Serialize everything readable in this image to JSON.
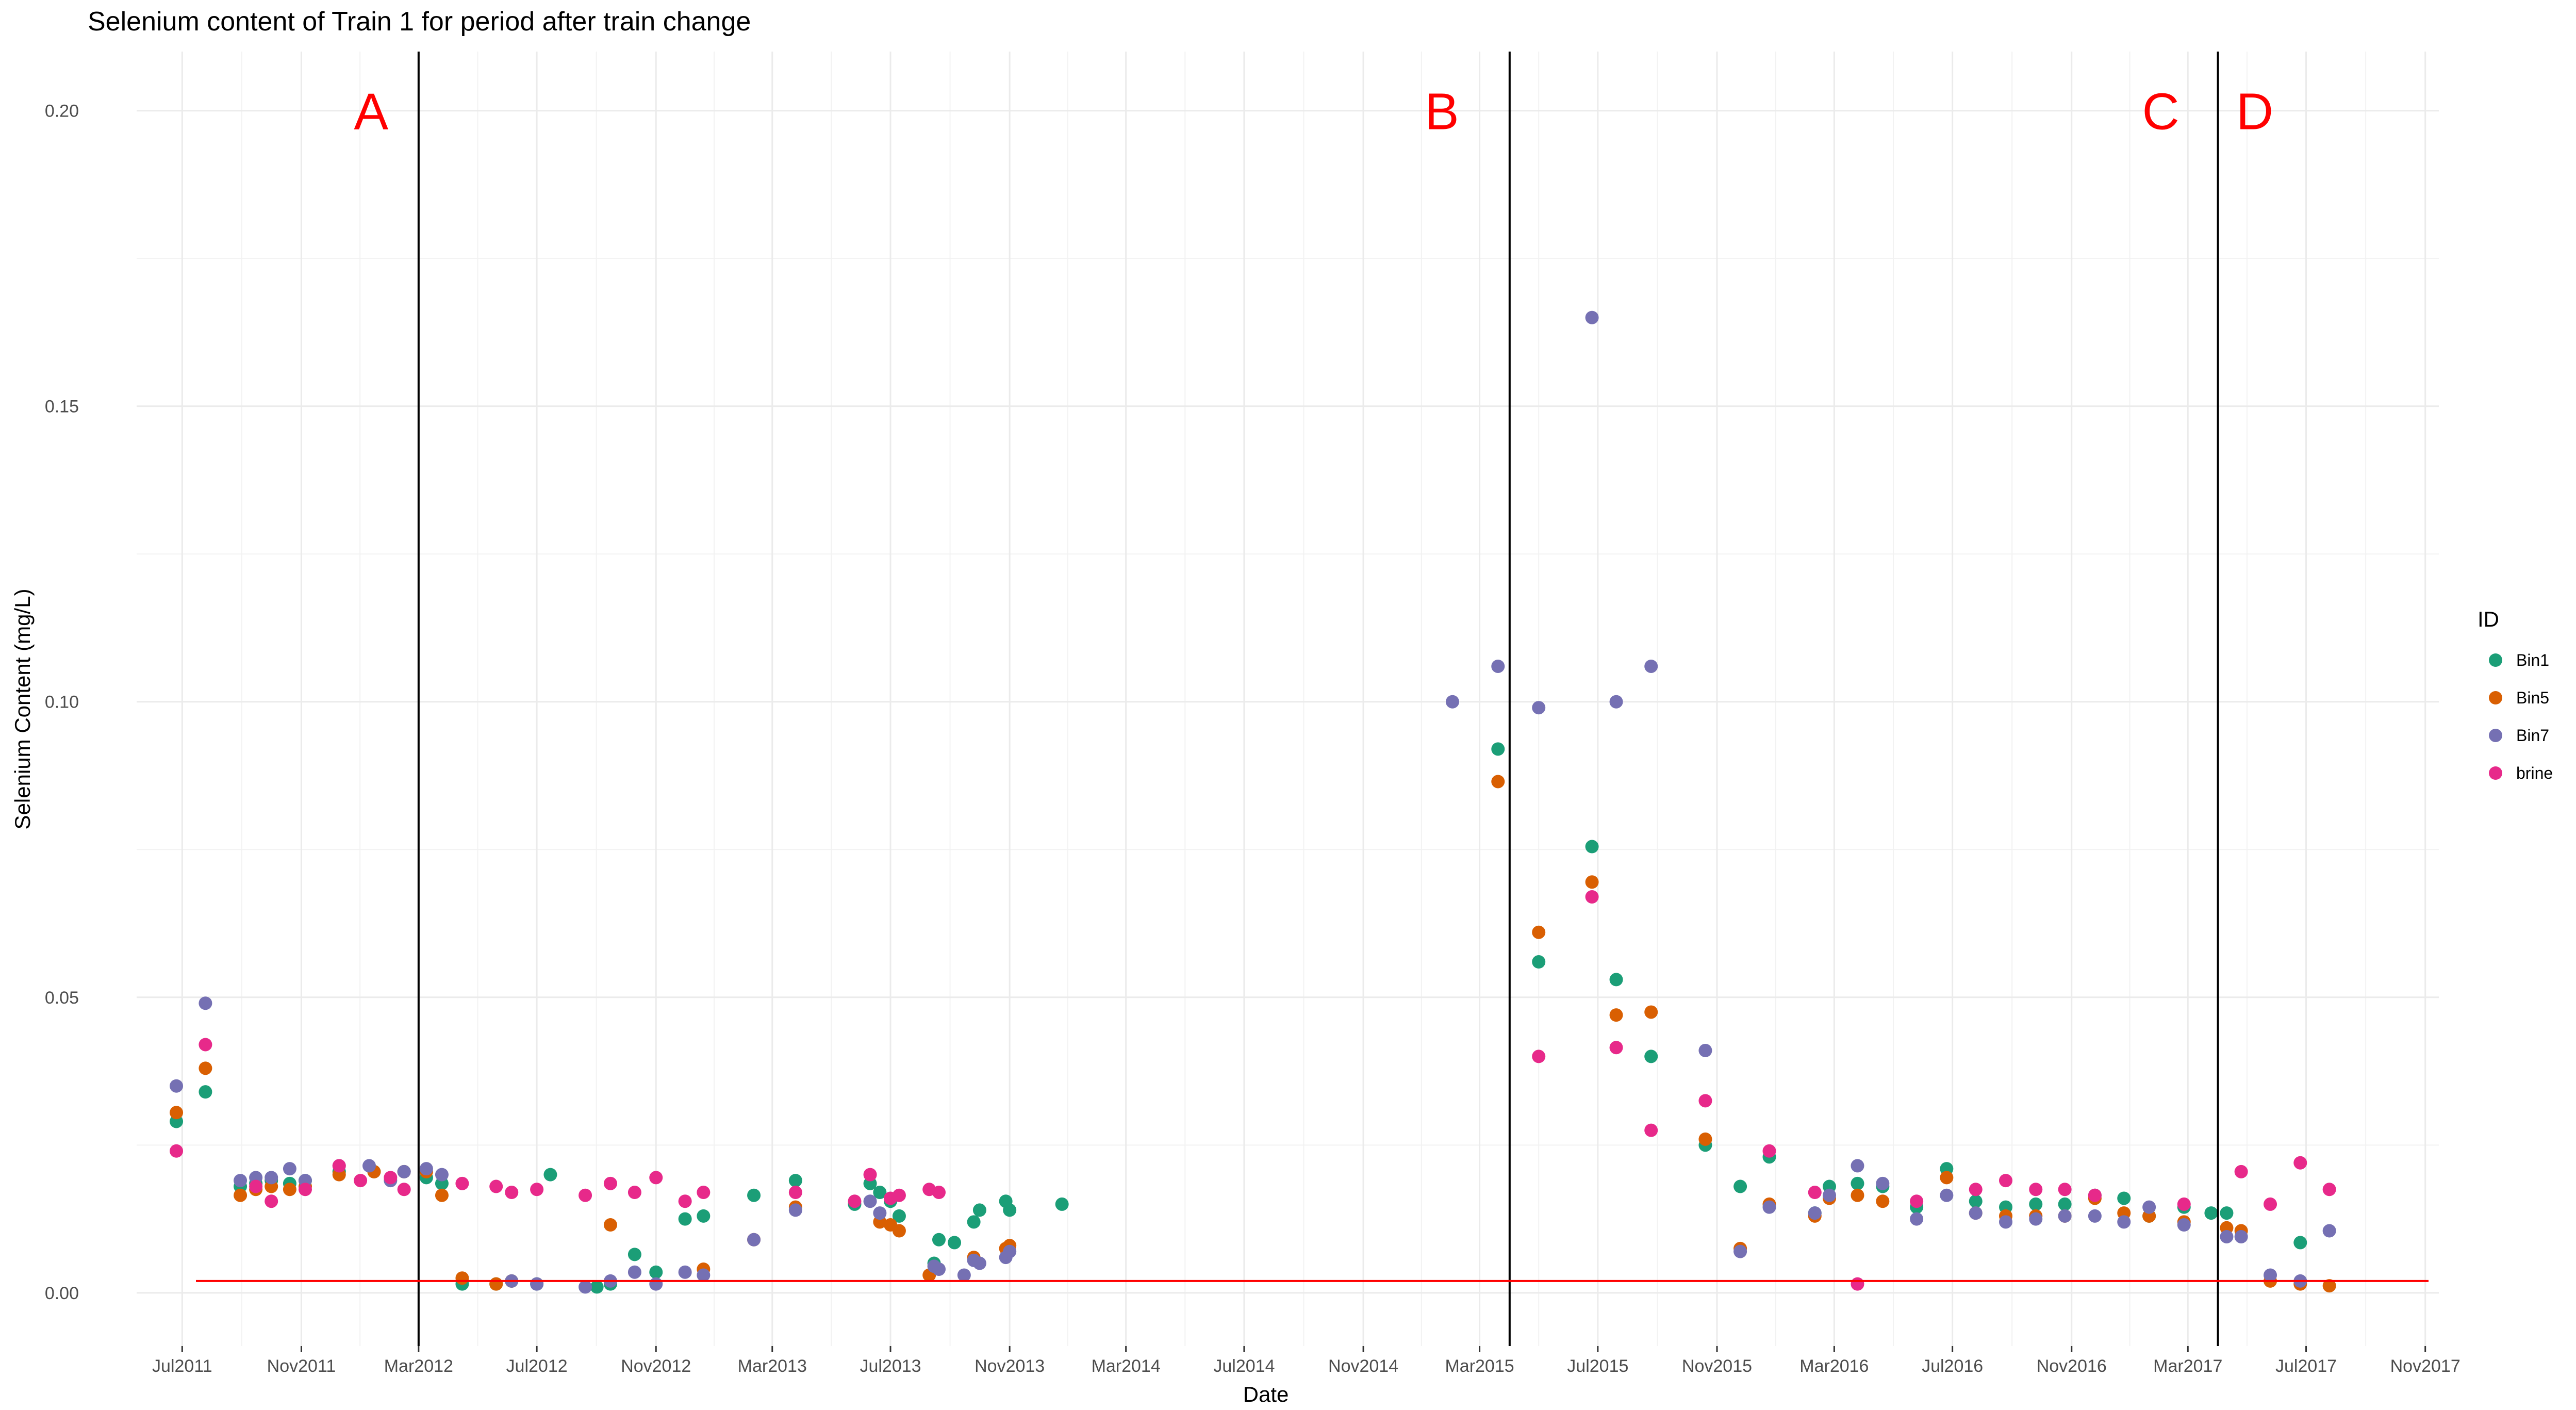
{
  "chart_data": {
    "type": "scatter",
    "title": "Selenium content of Train 1 for period after train change",
    "xlabel": "Date",
    "ylabel": "Selenium Content (mg/L)",
    "xlim": [
      "2011-05-15",
      "2017-11-15"
    ],
    "ylim": [
      -0.009,
      0.21
    ],
    "x_ticks": [
      {
        "date": "2011-07-01",
        "label": "Jul2011"
      },
      {
        "date": "2011-11-01",
        "label": "Nov2011"
      },
      {
        "date": "2012-03-01",
        "label": "Mar2012"
      },
      {
        "date": "2012-07-01",
        "label": "Jul2012"
      },
      {
        "date": "2012-11-01",
        "label": "Nov2012"
      },
      {
        "date": "2013-03-01",
        "label": "Mar2013"
      },
      {
        "date": "2013-07-01",
        "label": "Jul2013"
      },
      {
        "date": "2013-11-01",
        "label": "Nov2013"
      },
      {
        "date": "2014-03-01",
        "label": "Mar2014"
      },
      {
        "date": "2014-07-01",
        "label": "Jul2014"
      },
      {
        "date": "2014-11-01",
        "label": "Nov2014"
      },
      {
        "date": "2015-03-01",
        "label": "Mar2015"
      },
      {
        "date": "2015-07-01",
        "label": "Jul2015"
      },
      {
        "date": "2015-11-01",
        "label": "Nov2015"
      },
      {
        "date": "2016-03-01",
        "label": "Mar2016"
      },
      {
        "date": "2016-07-01",
        "label": "Jul2016"
      },
      {
        "date": "2016-11-01",
        "label": "Nov2016"
      },
      {
        "date": "2017-03-01",
        "label": "Mar2017"
      },
      {
        "date": "2017-07-01",
        "label": "Jul2017"
      },
      {
        "date": "2017-11-01",
        "label": "Nov2017"
      }
    ],
    "y_ticks": [
      {
        "value": 0.0,
        "label": "0.00"
      },
      {
        "value": 0.05,
        "label": "0.05"
      },
      {
        "value": 0.1,
        "label": "0.10"
      },
      {
        "value": 0.15,
        "label": "0.15"
      },
      {
        "value": 0.2,
        "label": "0.20"
      }
    ],
    "grid": true,
    "legend": {
      "title": "ID",
      "position": "right"
    },
    "vertical_lines": [
      {
        "date": "2012-03-01",
        "color": "#000000"
      },
      {
        "date": "2015-04-01",
        "color": "#000000"
      },
      {
        "date": "2017-04-01",
        "color": "#000000"
      }
    ],
    "hline": {
      "value": 0.002,
      "color": "#ff0000"
    },
    "annotations": [
      {
        "label": "A",
        "date": "2012-01-12",
        "value": 0.2
      },
      {
        "label": "B",
        "date": "2015-01-21",
        "value": 0.2
      },
      {
        "label": "C",
        "date": "2017-02-01",
        "value": 0.2
      },
      {
        "label": "D",
        "date": "2017-05-09",
        "value": 0.2
      }
    ],
    "series": [
      {
        "name": "Bin1",
        "color": "#1b9e77",
        "points": [
          [
            "2011-06-25",
            0.029
          ],
          [
            "2011-07-25",
            0.034
          ],
          [
            "2011-08-30",
            0.018
          ],
          [
            "2011-09-15",
            0.0185
          ],
          [
            "2011-10-01",
            0.019
          ],
          [
            "2011-10-20",
            0.0185
          ],
          [
            "2011-11-05",
            0.019
          ],
          [
            "2011-12-10",
            0.0205
          ],
          [
            "2012-01-15",
            0.0205
          ],
          [
            "2012-02-15",
            0.0205
          ],
          [
            "2012-03-09",
            0.0195
          ],
          [
            "2012-03-25",
            0.0185
          ],
          [
            "2012-04-15",
            0.0015
          ],
          [
            "2012-05-20",
            0.0015
          ],
          [
            "2012-06-05",
            0.002
          ],
          [
            "2012-07-01",
            0.0015
          ],
          [
            "2012-07-15",
            0.02
          ],
          [
            "2012-09-01",
            0.001
          ],
          [
            "2012-09-15",
            0.0015
          ],
          [
            "2012-10-10",
            0.0065
          ],
          [
            "2012-11-01",
            0.0035
          ],
          [
            "2012-12-01",
            0.0125
          ],
          [
            "2012-12-20",
            0.013
          ],
          [
            "2013-02-10",
            0.0165
          ],
          [
            "2013-03-25",
            0.019
          ],
          [
            "2013-05-25",
            0.015
          ],
          [
            "2013-06-10",
            0.0185
          ],
          [
            "2013-06-20",
            0.017
          ],
          [
            "2013-07-01",
            0.0155
          ],
          [
            "2013-07-10",
            0.013
          ],
          [
            "2013-08-15",
            0.005
          ],
          [
            "2013-08-20",
            0.009
          ],
          [
            "2013-09-05",
            0.0085
          ],
          [
            "2013-09-25",
            0.012
          ],
          [
            "2013-10-01",
            0.014
          ],
          [
            "2013-10-28",
            0.0155
          ],
          [
            "2013-11-01",
            0.014
          ],
          [
            "2013-12-25",
            0.015
          ],
          [
            "2015-03-20",
            0.092
          ],
          [
            "2015-05-01",
            0.056
          ],
          [
            "2015-06-25",
            0.0755
          ],
          [
            "2015-07-20",
            0.053
          ],
          [
            "2015-08-25",
            0.04
          ],
          [
            "2015-10-20",
            0.025
          ],
          [
            "2015-11-25",
            0.018
          ],
          [
            "2015-12-25",
            0.023
          ],
          [
            "2016-02-10",
            0.0135
          ],
          [
            "2016-02-25",
            0.018
          ],
          [
            "2016-03-25",
            0.0185
          ],
          [
            "2016-04-20",
            0.018
          ],
          [
            "2016-05-25",
            0.0145
          ],
          [
            "2016-06-25",
            0.021
          ],
          [
            "2016-07-25",
            0.0155
          ],
          [
            "2016-08-25",
            0.0145
          ],
          [
            "2016-09-25",
            0.015
          ],
          [
            "2016-10-25",
            0.015
          ],
          [
            "2016-11-25",
            0.0165
          ],
          [
            "2016-12-25",
            0.016
          ],
          [
            "2017-01-20",
            0.013
          ],
          [
            "2017-02-25",
            0.0145
          ],
          [
            "2017-03-25",
            0.0135
          ],
          [
            "2017-04-10",
            0.0135
          ],
          [
            "2017-06-25",
            0.0085
          ]
        ]
      },
      {
        "name": "Bin5",
        "color": "#d95f02",
        "points": [
          [
            "2011-06-25",
            0.0305
          ],
          [
            "2011-07-25",
            0.038
          ],
          [
            "2011-08-30",
            0.0165
          ],
          [
            "2011-09-15",
            0.0175
          ],
          [
            "2011-10-01",
            0.018
          ],
          [
            "2011-10-20",
            0.0175
          ],
          [
            "2011-11-05",
            0.018
          ],
          [
            "2011-12-10",
            0.02
          ],
          [
            "2012-01-15",
            0.0205
          ],
          [
            "2012-02-15",
            0.0205
          ],
          [
            "2012-03-09",
            0.0205
          ],
          [
            "2012-03-25",
            0.0165
          ],
          [
            "2012-04-15",
            0.0025
          ],
          [
            "2012-05-20",
            0.0015
          ],
          [
            "2012-06-05",
            0.002
          ],
          [
            "2012-09-15",
            0.0115
          ],
          [
            "2012-12-20",
            0.004
          ],
          [
            "2013-02-10",
            0.009
          ],
          [
            "2013-03-25",
            0.0145
          ],
          [
            "2013-06-20",
            0.012
          ],
          [
            "2013-07-01",
            0.0115
          ],
          [
            "2013-07-10",
            0.0105
          ],
          [
            "2013-08-10",
            0.003
          ],
          [
            "2013-09-25",
            0.006
          ],
          [
            "2013-10-28",
            0.0075
          ],
          [
            "2013-11-01",
            0.008
          ],
          [
            "2015-03-20",
            0.0865
          ],
          [
            "2015-05-01",
            0.061
          ],
          [
            "2015-06-25",
            0.0695
          ],
          [
            "2015-07-20",
            0.047
          ],
          [
            "2015-08-25",
            0.0475
          ],
          [
            "2015-10-20",
            0.026
          ],
          [
            "2015-11-25",
            0.0075
          ],
          [
            "2015-12-25",
            0.015
          ],
          [
            "2016-02-10",
            0.013
          ],
          [
            "2016-02-25",
            0.016
          ],
          [
            "2016-03-25",
            0.0165
          ],
          [
            "2016-04-20",
            0.0155
          ],
          [
            "2016-06-25",
            0.0195
          ],
          [
            "2016-07-25",
            0.0135
          ],
          [
            "2016-08-25",
            0.013
          ],
          [
            "2016-09-25",
            0.013
          ],
          [
            "2016-10-25",
            0.013
          ],
          [
            "2016-11-25",
            0.016
          ],
          [
            "2016-12-25",
            0.0135
          ],
          [
            "2017-01-20",
            0.013
          ],
          [
            "2017-02-25",
            0.012
          ],
          [
            "2017-04-10",
            0.011
          ],
          [
            "2017-04-25",
            0.0105
          ],
          [
            "2017-05-25",
            0.002
          ],
          [
            "2017-06-25",
            0.0015
          ],
          [
            "2017-07-25",
            0.0012
          ]
        ]
      },
      {
        "name": "Bin7",
        "color": "#7570b3",
        "points": [
          [
            "2011-06-25",
            0.035
          ],
          [
            "2011-07-25",
            0.049
          ],
          [
            "2011-08-30",
            0.019
          ],
          [
            "2011-09-15",
            0.0195
          ],
          [
            "2011-10-01",
            0.0195
          ],
          [
            "2011-10-20",
            0.021
          ],
          [
            "2011-11-05",
            0.019
          ],
          [
            "2011-12-10",
            0.0215
          ],
          [
            "2012-01-10",
            0.0215
          ],
          [
            "2012-02-01",
            0.019
          ],
          [
            "2012-02-15",
            0.0205
          ],
          [
            "2012-03-09",
            0.021
          ],
          [
            "2012-03-25",
            0.02
          ],
          [
            "2012-06-05",
            0.002
          ],
          [
            "2012-07-01",
            0.0015
          ],
          [
            "2012-08-20",
            0.001
          ],
          [
            "2012-09-15",
            0.002
          ],
          [
            "2012-10-10",
            0.0035
          ],
          [
            "2012-11-01",
            0.0015
          ],
          [
            "2012-12-01",
            0.0035
          ],
          [
            "2012-12-20",
            0.003
          ],
          [
            "2013-02-10",
            0.009
          ],
          [
            "2013-03-25",
            0.014
          ],
          [
            "2013-06-10",
            0.0155
          ],
          [
            "2013-06-20",
            0.0135
          ],
          [
            "2013-08-15",
            0.0045
          ],
          [
            "2013-08-20",
            0.004
          ],
          [
            "2013-09-15",
            0.003
          ],
          [
            "2013-09-25",
            0.0055
          ],
          [
            "2013-10-01",
            0.005
          ],
          [
            "2013-10-28",
            0.006
          ],
          [
            "2013-11-01",
            0.007
          ],
          [
            "2015-02-01",
            0.1
          ],
          [
            "2015-03-20",
            0.106
          ],
          [
            "2015-05-01",
            0.099
          ],
          [
            "2015-06-25",
            0.165
          ],
          [
            "2015-07-20",
            0.1
          ],
          [
            "2015-08-25",
            0.106
          ],
          [
            "2015-10-20",
            0.041
          ],
          [
            "2015-11-25",
            0.007
          ],
          [
            "2015-12-25",
            0.0145
          ],
          [
            "2016-02-10",
            0.0135
          ],
          [
            "2016-02-25",
            0.0165
          ],
          [
            "2016-03-25",
            0.0215
          ],
          [
            "2016-04-20",
            0.0185
          ],
          [
            "2016-05-25",
            0.0125
          ],
          [
            "2016-06-25",
            0.0165
          ],
          [
            "2016-07-25",
            0.0135
          ],
          [
            "2016-08-25",
            0.012
          ],
          [
            "2016-09-25",
            0.0125
          ],
          [
            "2016-10-25",
            0.013
          ],
          [
            "2016-11-25",
            0.013
          ],
          [
            "2016-12-25",
            0.012
          ],
          [
            "2017-01-20",
            0.0145
          ],
          [
            "2017-02-25",
            0.0115
          ],
          [
            "2017-04-10",
            0.0095
          ],
          [
            "2017-04-25",
            0.0095
          ],
          [
            "2017-05-25",
            0.003
          ],
          [
            "2017-06-25",
            0.002
          ],
          [
            "2017-07-25",
            0.0105
          ]
        ]
      },
      {
        "name": "brine",
        "color": "#e7298a",
        "points": [
          [
            "2011-06-25",
            0.024
          ],
          [
            "2011-07-25",
            0.042
          ],
          [
            "2011-09-15",
            0.018
          ],
          [
            "2011-10-01",
            0.0155
          ],
          [
            "2011-11-05",
            0.0175
          ],
          [
            "2011-12-10",
            0.0215
          ],
          [
            "2012-01-01",
            0.019
          ],
          [
            "2012-02-01",
            0.0195
          ],
          [
            "2012-02-15",
            0.0175
          ],
          [
            "2012-04-15",
            0.0185
          ],
          [
            "2012-05-20",
            0.018
          ],
          [
            "2012-06-05",
            0.017
          ],
          [
            "2012-07-01",
            0.0175
          ],
          [
            "2012-08-20",
            0.0165
          ],
          [
            "2012-09-15",
            0.0185
          ],
          [
            "2012-10-10",
            0.017
          ],
          [
            "2012-11-01",
            0.0195
          ],
          [
            "2012-12-01",
            0.0155
          ],
          [
            "2012-12-20",
            0.017
          ],
          [
            "2013-03-25",
            0.017
          ],
          [
            "2013-05-25",
            0.0155
          ],
          [
            "2013-06-10",
            0.02
          ],
          [
            "2013-07-01",
            0.016
          ],
          [
            "2013-07-10",
            0.0165
          ],
          [
            "2013-08-10",
            0.0175
          ],
          [
            "2013-08-20",
            0.017
          ],
          [
            "2015-05-01",
            0.04
          ],
          [
            "2015-06-25",
            0.067
          ],
          [
            "2015-07-20",
            0.0415
          ],
          [
            "2015-08-25",
            0.0275
          ],
          [
            "2015-10-20",
            0.0325
          ],
          [
            "2015-12-25",
            0.024
          ],
          [
            "2016-02-10",
            0.017
          ],
          [
            "2016-03-25",
            0.0015
          ],
          [
            "2016-05-25",
            0.0155
          ],
          [
            "2016-07-25",
            0.0175
          ],
          [
            "2016-08-25",
            0.019
          ],
          [
            "2016-09-25",
            0.0175
          ],
          [
            "2016-10-25",
            0.0175
          ],
          [
            "2016-11-25",
            0.0165
          ],
          [
            "2017-02-25",
            0.015
          ],
          [
            "2017-04-25",
            0.0205
          ],
          [
            "2017-05-25",
            0.015
          ],
          [
            "2017-06-25",
            0.022
          ],
          [
            "2017-07-25",
            0.0175
          ]
        ]
      }
    ]
  }
}
